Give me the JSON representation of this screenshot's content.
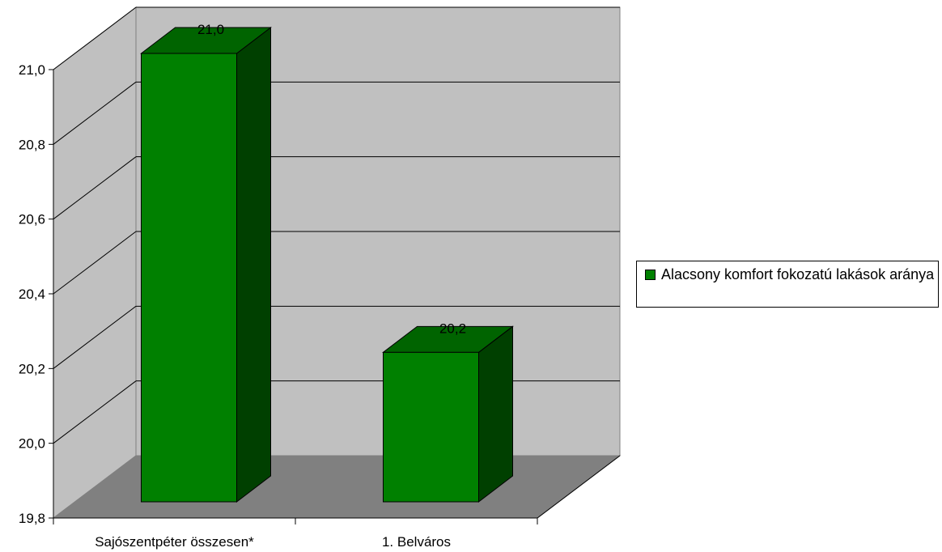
{
  "colors": {
    "bar_front": "#008000",
    "bar_side": "#004000",
    "bar_top": "#006400",
    "back_wall": "#c0c0c0",
    "side_wall": "#c0c0c0",
    "floor": "#808080",
    "gridline": "#000000"
  },
  "chart_data": {
    "type": "bar",
    "title": "",
    "xlabel": "",
    "ylabel": "",
    "categories": [
      "Sajószentpéter összesen*",
      "1. Belváros"
    ],
    "series": [
      {
        "name": "Alacsony komfort fokozatú lakások aránya",
        "values": [
          21.0,
          20.2
        ]
      }
    ],
    "data_labels": [
      "21,0",
      "20,2"
    ],
    "ylim": [
      19.8,
      21.0
    ],
    "yticks": [
      19.8,
      20.0,
      20.2,
      20.4,
      20.6,
      20.8,
      21.0
    ],
    "ytick_labels": [
      "19,8",
      "20,0",
      "20,2",
      "20,4",
      "20,6",
      "20,8",
      "21,0"
    ],
    "grid": true,
    "three_d": true,
    "legend_position": "right"
  }
}
